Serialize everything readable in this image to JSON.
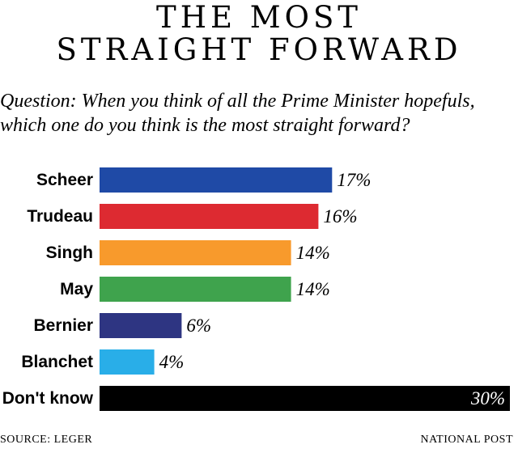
{
  "title": {
    "line1": "THE MOST",
    "line2": "STRAIGHT FORWARD"
  },
  "question": {
    "line1": "Question: When you think of all the Prime Minister hopefuls,",
    "line2": "which one do you think is the most straight forward?"
  },
  "chart_data": {
    "type": "bar",
    "orientation": "horizontal",
    "categories": [
      "Scheer",
      "Trudeau",
      "Singh",
      "May",
      "Bernier",
      "Blanchet",
      "Don't know"
    ],
    "values": [
      17,
      16,
      14,
      14,
      6,
      4,
      30
    ],
    "value_labels": [
      "17%",
      "16%",
      "14%",
      "14%",
      "6%",
      "4%",
      "30%"
    ],
    "colors": [
      "#1f4aa6",
      "#dd2a31",
      "#f89a2c",
      "#3fa34d",
      "#2e3582",
      "#29aee8",
      "#000000"
    ],
    "unit": "%",
    "xlim": [
      0,
      30
    ],
    "title": "THE MOST STRAIGHT FORWARD",
    "xlabel": "",
    "ylabel": "",
    "grid": false
  },
  "footer": {
    "source": "SOURCE: LEGER",
    "credit": "NATIONAL POST"
  }
}
